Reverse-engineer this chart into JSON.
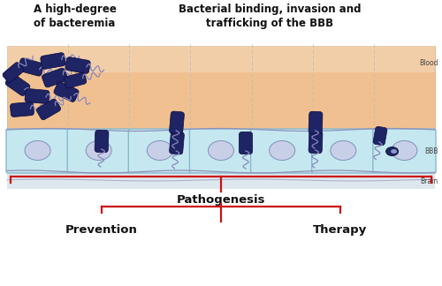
{
  "title_left": "A high-degree\nof bacteremia",
  "title_right": "Bacterial binding, invasion and\ntrafficking of the BBB",
  "label_blood": "Blood",
  "label_bbb": "BBB",
  "label_brain": "Brain",
  "label_pathogenesis": "Pathogenesis",
  "label_prevention": "Prevention",
  "label_therapy": "Therapy",
  "bg_color": "#ffffff",
  "blood_color_top": "#f0c090",
  "blood_color_bot": "#f8d8b8",
  "bbb_cell_color": "#c5e8f0",
  "bbb_cell_border": "#88b8cc",
  "brain_color": "#dde8ee",
  "bacteria_body_color": "#1e2464",
  "bacteria_edge_color": "#0a0a40",
  "flagella_color": "#8888bb",
  "bracket_color": "#cc1111",
  "dashed_line_color": "#bbbbbb",
  "side_label_color": "#444444",
  "title_color": "#111111",
  "pathogenesis_color": "#111111"
}
